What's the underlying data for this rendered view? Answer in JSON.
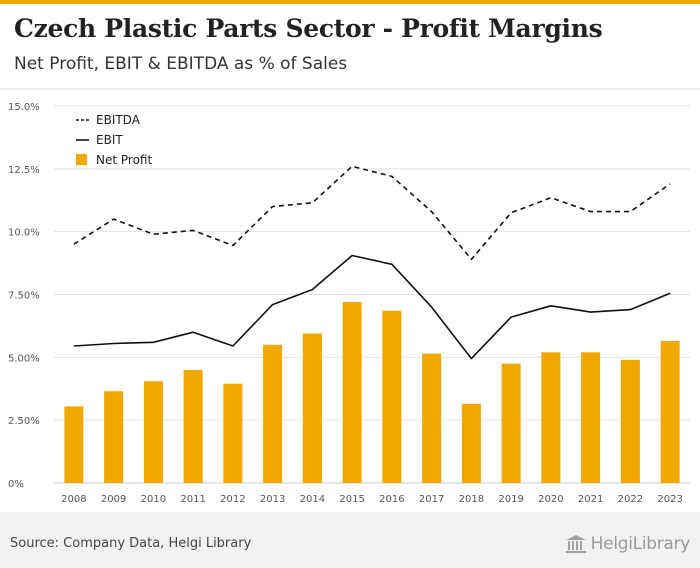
{
  "header": {
    "title": "Czech Plastic Parts Sector - Profit Margins",
    "subtitle": "Net Profit, EBIT & EBITDA as % of Sales"
  },
  "footer": {
    "source": "Source: Company Data, Helgi Library",
    "logo_text": "HelgiLibrary",
    "logo_icon": "library-building-icon"
  },
  "colors": {
    "accent": "#f0a800",
    "bar": "#f0a800",
    "line": "#111111",
    "grid": "#e3e3e3"
  },
  "chart_data": {
    "type": "bar",
    "title": "Czech Plastic Parts Sector - Profit Margins",
    "subtitle": "Net Profit, EBIT & EBITDA as % of Sales",
    "xlabel": "",
    "ylabel": "",
    "ylim": [
      0,
      15
    ],
    "yticks": [
      {
        "value": 0,
        "label": "0%"
      },
      {
        "value": 2.5,
        "label": "2.50%"
      },
      {
        "value": 5,
        "label": "5.00%"
      },
      {
        "value": 7.5,
        "label": "7.50%"
      },
      {
        "value": 10,
        "label": "10.0%"
      },
      {
        "value": 12.5,
        "label": "12.5%"
      },
      {
        "value": 15,
        "label": "15.0%"
      }
    ],
    "grid": true,
    "legend_position": "top-left",
    "categories": [
      "2008",
      "2009",
      "2010",
      "2011",
      "2012",
      "2013",
      "2014",
      "2015",
      "2016",
      "2017",
      "2018",
      "2019",
      "2020",
      "2021",
      "2022",
      "2023"
    ],
    "series": [
      {
        "name": "EBITDA",
        "kind": "line",
        "style": "dashed",
        "values": [
          9.5,
          10.5,
          9.9,
          10.05,
          9.45,
          11.0,
          11.15,
          12.6,
          12.2,
          10.8,
          8.9,
          10.75,
          11.35,
          10.8,
          10.8,
          11.9
        ]
      },
      {
        "name": "EBIT",
        "kind": "line",
        "style": "solid",
        "values": [
          5.45,
          5.55,
          5.6,
          6.0,
          5.45,
          7.1,
          7.7,
          9.05,
          8.7,
          7.0,
          4.95,
          6.6,
          7.05,
          6.8,
          6.9,
          7.55
        ]
      },
      {
        "name": "Net Profit",
        "kind": "bar",
        "values": [
          3.05,
          3.65,
          4.05,
          4.5,
          3.95,
          5.5,
          5.95,
          7.2,
          6.85,
          5.15,
          3.15,
          4.75,
          5.2,
          5.2,
          4.9,
          5.65
        ]
      }
    ]
  }
}
